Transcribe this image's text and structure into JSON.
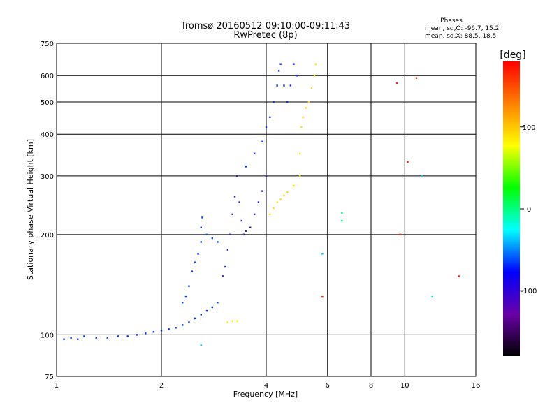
{
  "chart_data": {
    "type": "scatter",
    "title": "Tromsø 20160512 09:10:00-09:11:43",
    "subtitle": "RwPretec (8p)",
    "xlabel": "Frequency [MHz]",
    "ylabel": "Stationary phase Virtual Height [km]",
    "x_scale": "log",
    "y_scale": "log",
    "xlim": [
      1,
      16
    ],
    "ylim": [
      75,
      750
    ],
    "x_ticks": [
      1,
      2,
      4,
      6,
      8,
      10,
      16
    ],
    "y_ticks": [
      75,
      100,
      200,
      300,
      400,
      500,
      600,
      750
    ],
    "grid": true,
    "stats": {
      "heading": "Phases",
      "line1": "mean, sd,O: -96.7, 15.2",
      "line2": "mean, sd,X:  88.5, 18.5"
    },
    "colorbar": {
      "label": "[deg]",
      "range": [
        -180,
        180
      ],
      "ticks": [
        100,
        0,
        -100
      ],
      "colors": [
        "#000000",
        "#6a00a8",
        "#0000ff",
        "#00ffff",
        "#00ff00",
        "#ffff00",
        "#ff8000",
        "#ff0000"
      ]
    },
    "series": [
      {
        "color": "#0033dd",
        "points": [
          [
            1.05,
            97
          ],
          [
            1.1,
            98
          ],
          [
            1.15,
            97
          ],
          [
            1.2,
            99
          ],
          [
            1.3,
            98
          ],
          [
            1.4,
            98
          ],
          [
            1.5,
            99
          ],
          [
            1.6,
            99
          ],
          [
            1.7,
            100
          ],
          [
            1.8,
            101
          ],
          [
            1.9,
            102
          ],
          [
            2.0,
            103
          ],
          [
            2.1,
            104
          ],
          [
            2.2,
            105
          ],
          [
            2.3,
            107
          ],
          [
            2.4,
            109
          ],
          [
            2.5,
            112
          ],
          [
            2.6,
            115
          ],
          [
            2.7,
            118
          ],
          [
            2.8,
            121
          ],
          [
            2.9,
            125
          ]
        ]
      },
      {
        "color": "#0044ff",
        "points": [
          [
            2.3,
            125
          ],
          [
            2.35,
            130
          ],
          [
            2.4,
            140
          ],
          [
            2.45,
            155
          ],
          [
            2.5,
            165
          ],
          [
            2.55,
            175
          ],
          [
            2.6,
            190
          ],
          [
            2.6,
            210
          ],
          [
            2.62,
            225
          ],
          [
            2.7,
            200
          ],
          [
            2.8,
            195
          ],
          [
            2.9,
            190
          ]
        ]
      },
      {
        "color": "#2222cc",
        "points": [
          [
            3.0,
            150
          ],
          [
            3.05,
            160
          ],
          [
            3.1,
            180
          ],
          [
            3.15,
            200
          ],
          [
            3.2,
            230
          ],
          [
            3.25,
            260
          ],
          [
            3.3,
            300
          ],
          [
            3.35,
            250
          ],
          [
            3.4,
            220
          ],
          [
            3.45,
            200
          ],
          [
            3.5,
            205
          ],
          [
            3.6,
            210
          ],
          [
            3.7,
            230
          ],
          [
            3.8,
            250
          ],
          [
            3.9,
            270
          ],
          [
            4.0,
            300
          ]
        ]
      },
      {
        "color": "#0033ff",
        "points": [
          [
            3.5,
            320
          ],
          [
            3.7,
            350
          ],
          [
            3.9,
            380
          ],
          [
            4.0,
            420
          ],
          [
            4.1,
            450
          ],
          [
            4.2,
            500
          ],
          [
            4.3,
            560
          ],
          [
            4.35,
            620
          ],
          [
            4.4,
            650
          ],
          [
            4.5,
            560
          ],
          [
            4.6,
            500
          ],
          [
            4.7,
            560
          ],
          [
            4.8,
            650
          ],
          [
            4.9,
            600
          ]
        ]
      },
      {
        "color": "#ffdd00",
        "points": [
          [
            4.1,
            230
          ],
          [
            4.2,
            240
          ],
          [
            4.3,
            250
          ],
          [
            4.4,
            255
          ],
          [
            4.5,
            262
          ],
          [
            4.6,
            268
          ],
          [
            4.8,
            280
          ],
          [
            5.0,
            300
          ],
          [
            5.0,
            350
          ],
          [
            5.05,
            420
          ],
          [
            5.1,
            450
          ],
          [
            5.2,
            480
          ],
          [
            5.3,
            500
          ],
          [
            5.4,
            550
          ],
          [
            5.5,
            600
          ],
          [
            5.55,
            650
          ]
        ]
      },
      {
        "color": "#00ff66",
        "points": [
          [
            6.6,
            220
          ],
          [
            6.6,
            232
          ]
        ]
      },
      {
        "color": "#ffee00",
        "points": [
          [
            3.1,
            109
          ],
          [
            3.2,
            110
          ],
          [
            3.3,
            110
          ]
        ]
      },
      {
        "color": "#ff2200",
        "points": [
          [
            9.5,
            570
          ],
          [
            10.8,
            590
          ],
          [
            10.2,
            330
          ],
          [
            14.3,
            150
          ],
          [
            5.8,
            130
          ],
          [
            9.7,
            200
          ]
        ]
      },
      {
        "color": "#00ccff",
        "points": [
          [
            5.8,
            175
          ],
          [
            11.2,
            300
          ],
          [
            12.0,
            130
          ],
          [
            2.6,
            93
          ]
        ]
      }
    ]
  }
}
